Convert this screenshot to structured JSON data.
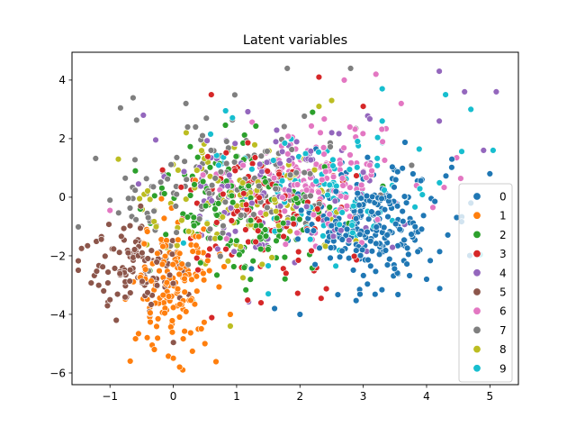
{
  "chart_data": {
    "type": "scatter",
    "title": "Latent variables",
    "xlabel": "",
    "ylabel": "",
    "xlim": [
      -1.6,
      5.45
    ],
    "ylim": [
      -6.4,
      4.95
    ],
    "x_ticks": [
      -1,
      0,
      1,
      2,
      3,
      4,
      5
    ],
    "y_ticks": [
      -6,
      -4,
      -2,
      0,
      2,
      4
    ],
    "x_tick_labels": [
      "−1",
      "0",
      "1",
      "2",
      "3",
      "4",
      "5"
    ],
    "y_tick_labels": [
      "−6",
      "−4",
      "−2",
      "0",
      "2",
      "4"
    ],
    "grid": false,
    "legend_position": "right",
    "series": [
      {
        "name": "0",
        "color": "#1f77b4",
        "center": [
          3.1,
          -0.9
        ],
        "spread": [
          0.55,
          1.0
        ],
        "n": 240,
        "extreme_points": [
          [
            5.0,
            0.8
          ],
          [
            4.7,
            -0.2
          ],
          [
            4.4,
            1.3
          ],
          [
            2.0,
            -4.0
          ],
          [
            1.6,
            -3.8
          ],
          [
            4.0,
            -2.8
          ]
        ]
      },
      {
        "name": "1",
        "color": "#ff7f0e",
        "center": [
          0.0,
          -2.8
        ],
        "spread": [
          0.3,
          1.1
        ],
        "n": 150,
        "extreme_points": [
          [
            0.1,
            -5.8
          ],
          [
            0.15,
            -5.9
          ],
          [
            0.5,
            -5.0
          ],
          [
            -0.3,
            -5.2
          ],
          [
            0.9,
            -4.0
          ],
          [
            0.0,
            -5.5
          ]
        ]
      },
      {
        "name": "2",
        "color": "#2ca02c",
        "center": [
          1.1,
          -0.5
        ],
        "spread": [
          0.7,
          1.1
        ],
        "n": 150,
        "extreme_points": [
          [
            -0.6,
            0.9
          ],
          [
            2.2,
            2.9
          ],
          [
            0.3,
            -3.5
          ]
        ]
      },
      {
        "name": "3",
        "color": "#d62728",
        "center": [
          1.4,
          -0.4
        ],
        "spread": [
          0.7,
          1.1
        ],
        "n": 130,
        "extreme_points": [
          [
            2.3,
            4.1
          ],
          [
            0.6,
            3.5
          ],
          [
            3.0,
            3.1
          ]
        ]
      },
      {
        "name": "4",
        "color": "#9467bd",
        "center": [
          1.6,
          0.2
        ],
        "spread": [
          0.9,
          1.2
        ],
        "n": 130,
        "extreme_points": [
          [
            5.1,
            3.6
          ],
          [
            4.9,
            1.6
          ],
          [
            4.2,
            4.3
          ],
          [
            4.6,
            3.6
          ],
          [
            4.2,
            2.6
          ]
        ]
      },
      {
        "name": "5",
        "color": "#8c564b",
        "center": [
          -0.6,
          -2.3
        ],
        "spread": [
          0.35,
          0.8
        ],
        "n": 110,
        "extreme_points": [
          [
            -1.45,
            -1.75
          ],
          [
            -1.1,
            -3.2
          ],
          [
            -1.0,
            -3.5
          ],
          [
            -0.5,
            -1.0
          ],
          [
            -0.9,
            -4.2
          ]
        ]
      },
      {
        "name": "6",
        "color": "#e377c2",
        "center": [
          2.2,
          0.7
        ],
        "spread": [
          0.7,
          0.9
        ],
        "n": 150,
        "extreme_points": [
          [
            -1.0,
            -0.45
          ],
          [
            3.2,
            4.2
          ],
          [
            2.7,
            4.0
          ],
          [
            3.6,
            3.2
          ]
        ]
      },
      {
        "name": "7",
        "color": "#7f7f7f",
        "center": [
          0.7,
          0.4
        ],
        "spread": [
          0.9,
          1.2
        ],
        "n": 150,
        "extreme_points": [
          [
            -1.0,
            -0.1
          ],
          [
            1.8,
            4.4
          ],
          [
            2.8,
            4.4
          ],
          [
            0.2,
            3.2
          ]
        ]
      },
      {
        "name": "8",
        "color": "#bcbd22",
        "center": [
          1.2,
          -0.3
        ],
        "spread": [
          0.8,
          1.0
        ],
        "n": 110,
        "extreme_points": [
          [
            0.9,
            -4.4
          ],
          [
            2.5,
            3.3
          ],
          [
            2.3,
            3.1
          ]
        ]
      },
      {
        "name": "9",
        "color": "#17becf",
        "center": [
          2.3,
          0.2
        ],
        "spread": [
          0.9,
          1.0
        ],
        "n": 110,
        "extreme_points": [
          [
            4.7,
            3.0
          ],
          [
            4.3,
            3.5
          ],
          [
            5.05,
            1.6
          ],
          [
            1.5,
            -3.3
          ],
          [
            3.3,
            3.7
          ]
        ]
      }
    ]
  }
}
